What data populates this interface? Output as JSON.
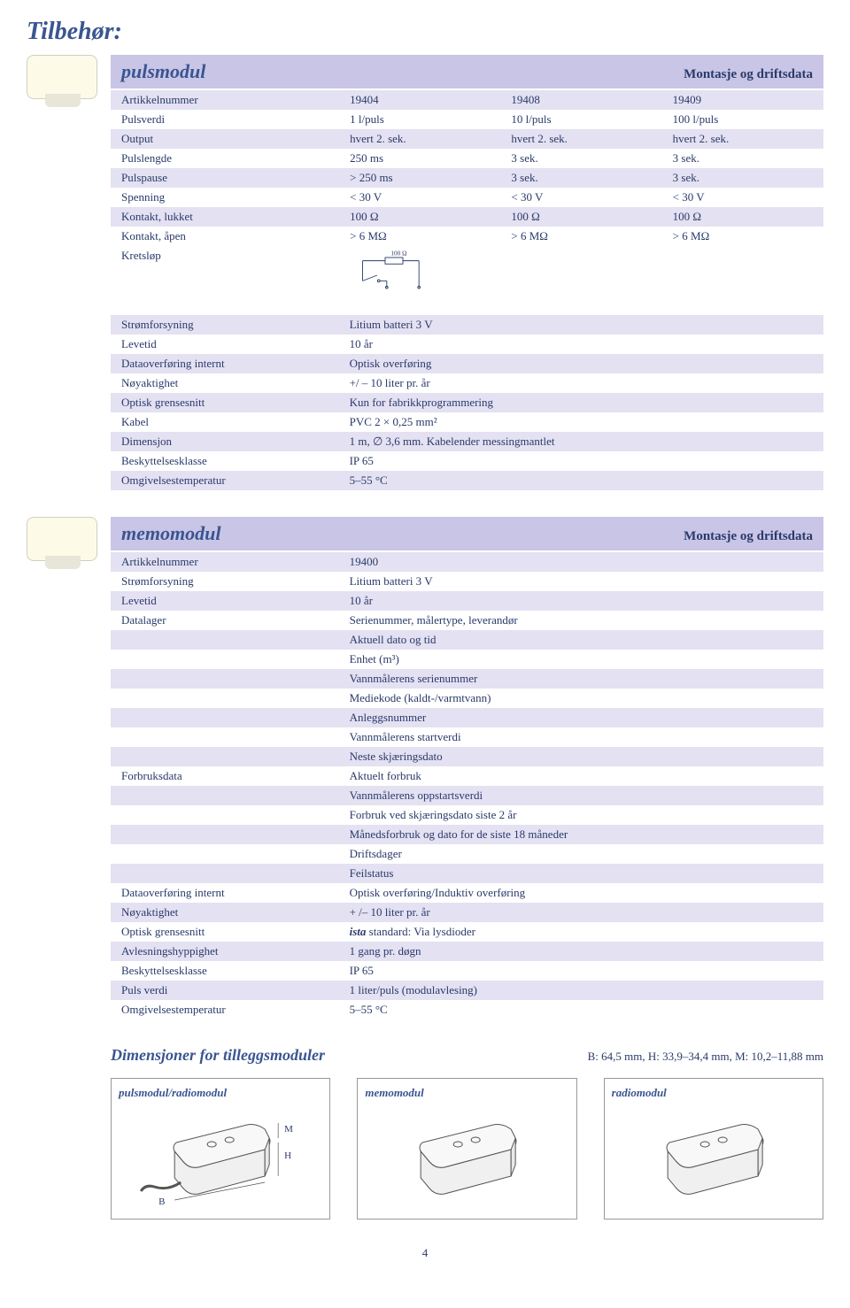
{
  "page": {
    "title": "Tilbehør:",
    "number": "4"
  },
  "pulsmodul": {
    "name": "pulsmodul",
    "subtitle": "Montasje og driftsdata",
    "rows3": [
      {
        "label": "Artikkelnummer",
        "c": [
          "19404",
          "19408",
          "19409"
        ]
      },
      {
        "label": "Pulsverdi",
        "c": [
          "1 l/puls",
          "10 l/puls",
          "100 l/puls"
        ]
      },
      {
        "label": "Output",
        "c": [
          "hvert 2. sek.",
          "hvert 2. sek.",
          "hvert 2. sek."
        ]
      },
      {
        "label": "Pulslengde",
        "c": [
          "250 ms",
          "3 sek.",
          "3 sek."
        ]
      },
      {
        "label": "Pulspause",
        "c": [
          "> 250 ms",
          "3 sek.",
          "3 sek."
        ]
      },
      {
        "label": "Spenning",
        "c": [
          "< 30 V",
          "< 30 V",
          "< 30 V"
        ]
      },
      {
        "label": "Kontakt, lukket",
        "c": [
          "100 Ω",
          "100 Ω",
          "100 Ω"
        ]
      },
      {
        "label": "Kontakt, åpen",
        "c": [
          "> 6 MΩ",
          "> 6 MΩ",
          "> 6 MΩ"
        ]
      }
    ],
    "circuit_label": "Kretsløp",
    "circuit_value": "100 Ω",
    "rows1": [
      {
        "label": "Strømforsyning",
        "val": "Litium batteri 3 V"
      },
      {
        "label": "Levetid",
        "val": "10 år"
      },
      {
        "label": "Dataoverføring internt",
        "val": "Optisk overføring"
      },
      {
        "label": "Nøyaktighet",
        "val": "+/ – 10 liter pr. år"
      },
      {
        "label": "Optisk grensesnitt",
        "val": "Kun for fabrikkprogrammering"
      },
      {
        "label": "Kabel",
        "val": "PVC 2 × 0,25 mm²"
      },
      {
        "label": "Dimensjon",
        "val": "1 m, ∅ 3,6 mm. Kabelender messingmantlet"
      },
      {
        "label": "Beskyttelsesklasse",
        "val": "IP 65"
      },
      {
        "label": "Omgivelsestemperatur",
        "val": "5–55 °C"
      }
    ]
  },
  "memomodul": {
    "name": "memomodul",
    "subtitle": "Montasje og driftsdata",
    "rows": [
      {
        "label": "Artikkelnummer",
        "vals": [
          "19400"
        ]
      },
      {
        "label": "Strømforsyning",
        "vals": [
          "Litium batteri 3 V"
        ]
      },
      {
        "label": "Levetid",
        "vals": [
          "10 år"
        ]
      },
      {
        "label": "Datalager",
        "vals": [
          "Serienummer, målertype, leverandør",
          "Aktuell dato og tid",
          "Enhet (m³)",
          "Vannmålerens serienummer",
          "Mediekode (kaldt-/varmtvann)",
          "Anleggsnummer",
          "Vannmålerens startverdi",
          "Neste skjæringsdato"
        ]
      },
      {
        "label": "Forbruksdata",
        "vals": [
          "Aktuelt forbruk",
          "Vannmålerens oppstartsverdi",
          "Forbruk ved skjæringsdato siste 2 år",
          "Månedsforbruk og dato for de siste 18 måneder",
          "Driftsdager",
          "Feilstatus"
        ]
      },
      {
        "label": "Dataoverføring internt",
        "vals": [
          "Optisk overføring/Induktiv overføring"
        ]
      },
      {
        "label": "Nøyaktighet",
        "vals": [
          "+ /– 10 liter pr. år"
        ]
      },
      {
        "label": "Optisk grensesnitt",
        "vals": [
          "ista standard: Via lysdioder"
        ],
        "ista": true
      },
      {
        "label": "Avlesningshyppighet",
        "vals": [
          "1 gang pr. døgn"
        ]
      },
      {
        "label": "Beskyttelsesklasse",
        "vals": [
          "IP 65"
        ]
      },
      {
        "label": "Puls verdi",
        "vals": [
          "1 liter/puls (modulavlesing)"
        ]
      },
      {
        "label": "Omgivelsestemperatur",
        "vals": [
          "5–55 °C"
        ]
      }
    ]
  },
  "dimensions": {
    "title": "Dimensjoner for tilleggsmoduler",
    "value": "B: 64,5 mm, H: 33,9–34,4 mm, M: 10,2–11,88 mm",
    "diagrams": [
      {
        "label": "pulsmodul/radiomodul",
        "letters": [
          "M",
          "H",
          "B"
        ],
        "cable": true
      },
      {
        "label": "memomodul",
        "letters": [],
        "cable": false
      },
      {
        "label": "radiomodul",
        "letters": [],
        "cable": false
      }
    ]
  },
  "colors": {
    "heading": "#3a5590",
    "text": "#2a3a6a",
    "header_bar": "#c9c5e6",
    "stripe": "#e4e1f2",
    "background": "#ffffff"
  }
}
